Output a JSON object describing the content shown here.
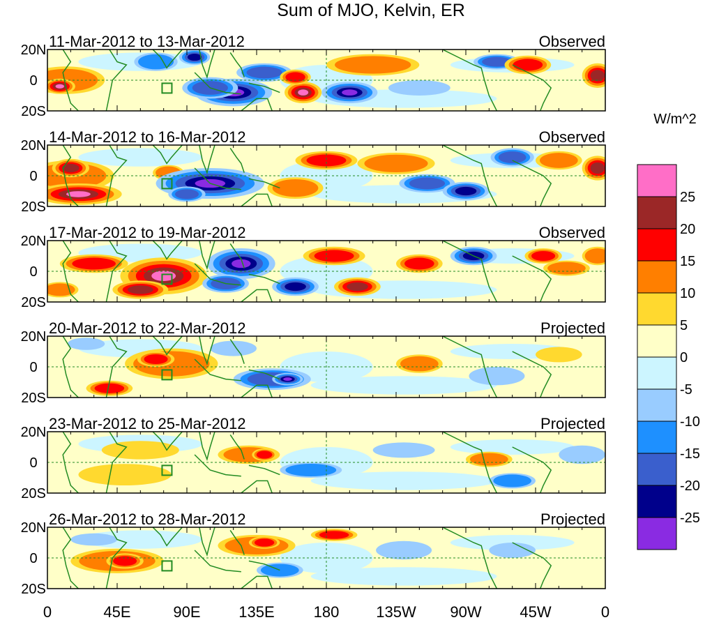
{
  "chart_data": {
    "type": "heatmap",
    "title": "Sum of MJO, Kelvin, ER",
    "colorbar": {
      "label": "W/m^2",
      "tick_labels": [
        "25",
        "20",
        "15",
        "10",
        "5",
        "0",
        "-5",
        "-10",
        "-15",
        "-20",
        "-25"
      ],
      "colors": [
        "#ff6ec7",
        "#9b2727",
        "#ff0000",
        "#ff7f00",
        "#ffd92f",
        "#ffffc8",
        "#ccf5ff",
        "#99ccff",
        "#1e90ff",
        "#3a5fcd",
        "#00008b",
        "#8a2be2"
      ]
    },
    "x_axis": {
      "tick_labels": [
        "0",
        "45E",
        "90E",
        "135E",
        "180",
        "135W",
        "90W",
        "45W",
        "0"
      ],
      "range": [
        0,
        360
      ]
    },
    "y_axis": {
      "tick_labels": [
        "20N",
        "0",
        "20S"
      ],
      "range": [
        -20,
        20
      ]
    },
    "panels": [
      {
        "date_range": "11-Mar-2012 to 13-Mar-2012",
        "status": "Observed",
        "blobs": [
          {
            "lon": 12,
            "lat": 0,
            "rx": 25,
            "ry": 9,
            "level": 2
          },
          {
            "lon": 8,
            "lat": -4,
            "rx": 10,
            "ry": 5,
            "level": 5
          },
          {
            "lon": 70,
            "lat": 12,
            "rx": 14,
            "ry": 6,
            "level": -2
          },
          {
            "lon": 95,
            "lat": 15,
            "rx": 10,
            "ry": 5,
            "level": -4
          },
          {
            "lon": 120,
            "lat": -8,
            "rx": 25,
            "ry": 9,
            "level": -5
          },
          {
            "lon": 105,
            "lat": -5,
            "rx": 18,
            "ry": 7,
            "level": -3
          },
          {
            "lon": 140,
            "lat": 5,
            "rx": 18,
            "ry": 6,
            "level": -3
          },
          {
            "lon": 165,
            "lat": -8,
            "rx": 12,
            "ry": 7,
            "level": 5
          },
          {
            "lon": 160,
            "lat": 2,
            "rx": 10,
            "ry": 5,
            "level": 3
          },
          {
            "lon": 195,
            "lat": -8,
            "rx": 18,
            "ry": 7,
            "level": -5
          },
          {
            "lon": 210,
            "lat": 10,
            "rx": 30,
            "ry": 7,
            "level": 2
          },
          {
            "lon": 240,
            "lat": -5,
            "rx": 20,
            "ry": 5,
            "level": -1
          },
          {
            "lon": 290,
            "lat": 12,
            "rx": 15,
            "ry": 5,
            "level": -3
          },
          {
            "lon": 310,
            "lat": 10,
            "rx": 15,
            "ry": 6,
            "level": 3
          },
          {
            "lon": 355,
            "lat": 3,
            "rx": 10,
            "ry": 8,
            "level": 4
          }
        ]
      },
      {
        "date_range": "14-Mar-2012 to 16-Mar-2012",
        "status": "Observed",
        "blobs": [
          {
            "lon": 15,
            "lat": 0,
            "rx": 28,
            "ry": 10,
            "level": 2
          },
          {
            "lon": 20,
            "lat": -12,
            "rx": 28,
            "ry": 7,
            "level": 5
          },
          {
            "lon": 15,
            "lat": 5,
            "rx": 12,
            "ry": 6,
            "level": 4
          },
          {
            "lon": 78,
            "lat": 2,
            "rx": 10,
            "ry": 5,
            "level": 2
          },
          {
            "lon": 105,
            "lat": -5,
            "rx": 35,
            "ry": 10,
            "level": -5
          },
          {
            "lon": 90,
            "lat": -12,
            "rx": 12,
            "ry": 5,
            "level": -3
          },
          {
            "lon": 160,
            "lat": -8,
            "rx": 18,
            "ry": 7,
            "level": 2
          },
          {
            "lon": 180,
            "lat": 10,
            "rx": 20,
            "ry": 6,
            "level": 3
          },
          {
            "lon": 225,
            "lat": 8,
            "rx": 25,
            "ry": 7,
            "level": 2
          },
          {
            "lon": 245,
            "lat": -5,
            "rx": 18,
            "ry": 6,
            "level": -3
          },
          {
            "lon": 270,
            "lat": -10,
            "rx": 15,
            "ry": 6,
            "level": -4
          },
          {
            "lon": 300,
            "lat": 12,
            "rx": 14,
            "ry": 6,
            "level": -3
          },
          {
            "lon": 330,
            "lat": 10,
            "rx": 15,
            "ry": 6,
            "level": 2
          },
          {
            "lon": 355,
            "lat": 5,
            "rx": 10,
            "ry": 8,
            "level": 4
          }
        ]
      },
      {
        "date_range": "17-Mar-2012 to 19-Mar-2012",
        "status": "Observed",
        "blobs": [
          {
            "lon": 30,
            "lat": 5,
            "rx": 22,
            "ry": 6,
            "level": 3
          },
          {
            "lon": 8,
            "lat": -12,
            "rx": 12,
            "ry": 5,
            "level": 2
          },
          {
            "lon": 75,
            "lat": -3,
            "rx": 28,
            "ry": 12,
            "level": 5
          },
          {
            "lon": 60,
            "lat": -12,
            "rx": 18,
            "ry": 6,
            "level": 4
          },
          {
            "lon": 125,
            "lat": 5,
            "rx": 22,
            "ry": 10,
            "level": -5
          },
          {
            "lon": 115,
            "lat": -8,
            "rx": 15,
            "ry": 6,
            "level": -3
          },
          {
            "lon": 160,
            "lat": -10,
            "rx": 15,
            "ry": 6,
            "level": -4
          },
          {
            "lon": 185,
            "lat": 10,
            "rx": 20,
            "ry": 6,
            "level": 3
          },
          {
            "lon": 200,
            "lat": -10,
            "rx": 15,
            "ry": 6,
            "level": 4
          },
          {
            "lon": 240,
            "lat": 5,
            "rx": 15,
            "ry": 6,
            "level": 3
          },
          {
            "lon": 275,
            "lat": 10,
            "rx": 15,
            "ry": 6,
            "level": -4
          },
          {
            "lon": 320,
            "lat": 10,
            "rx": 12,
            "ry": 5,
            "level": 3
          },
          {
            "lon": 335,
            "lat": 2,
            "rx": 15,
            "ry": 5,
            "level": 2
          },
          {
            "lon": 355,
            "lat": 10,
            "rx": 10,
            "ry": 6,
            "level": 2
          }
        ]
      },
      {
        "date_range": "20-Mar-2012 to 22-Mar-2012",
        "status": "Projected",
        "blobs": [
          {
            "lon": 80,
            "lat": 2,
            "rx": 30,
            "ry": 10,
            "level": 2
          },
          {
            "lon": 70,
            "lat": 5,
            "rx": 12,
            "ry": 5,
            "level": 3
          },
          {
            "lon": 40,
            "lat": -14,
            "rx": 15,
            "ry": 5,
            "level": 3
          },
          {
            "lon": 25,
            "lat": 15,
            "rx": 12,
            "ry": 4,
            "level": -1
          },
          {
            "lon": 145,
            "lat": -8,
            "rx": 25,
            "ry": 7,
            "level": -3
          },
          {
            "lon": 155,
            "lat": -8,
            "rx": 10,
            "ry": 4,
            "level": -5
          },
          {
            "lon": 120,
            "lat": 12,
            "rx": 15,
            "ry": 5,
            "level": -1
          },
          {
            "lon": 240,
            "lat": 2,
            "rx": 15,
            "ry": 6,
            "level": 2
          },
          {
            "lon": 290,
            "lat": -6,
            "rx": 18,
            "ry": 6,
            "level": -1
          },
          {
            "lon": 330,
            "lat": 8,
            "rx": 15,
            "ry": 5,
            "level": 1
          }
        ]
      },
      {
        "date_range": "23-Mar-2012 to 25-Mar-2012",
        "status": "Projected",
        "blobs": [
          {
            "lon": 50,
            "lat": -8,
            "rx": 30,
            "ry": 7,
            "level": 1
          },
          {
            "lon": 60,
            "lat": 8,
            "rx": 25,
            "ry": 6,
            "level": 1
          },
          {
            "lon": 130,
            "lat": 5,
            "rx": 20,
            "ry": 6,
            "level": 2
          },
          {
            "lon": 140,
            "lat": 5,
            "rx": 8,
            "ry": 4,
            "level": 3
          },
          {
            "lon": 170,
            "lat": -5,
            "rx": 20,
            "ry": 5,
            "level": -2
          },
          {
            "lon": 230,
            "lat": 8,
            "rx": 20,
            "ry": 5,
            "level": -1
          },
          {
            "lon": 285,
            "lat": 2,
            "rx": 15,
            "ry": 5,
            "level": 2
          },
          {
            "lon": 300,
            "lat": -12,
            "rx": 15,
            "ry": 5,
            "level": -2
          },
          {
            "lon": 345,
            "lat": 5,
            "rx": 15,
            "ry": 6,
            "level": -1
          }
        ]
      },
      {
        "date_range": "26-Mar-2012 to 28-Mar-2012",
        "status": "Projected",
        "blobs": [
          {
            "lon": 45,
            "lat": -2,
            "rx": 30,
            "ry": 8,
            "level": 2
          },
          {
            "lon": 50,
            "lat": -2,
            "rx": 12,
            "ry": 5,
            "level": 3
          },
          {
            "lon": 135,
            "lat": 8,
            "rx": 25,
            "ry": 7,
            "level": 2
          },
          {
            "lon": 140,
            "lat": 10,
            "rx": 10,
            "ry": 4,
            "level": 3
          },
          {
            "lon": 185,
            "lat": 15,
            "rx": 15,
            "ry": 4,
            "level": 3
          },
          {
            "lon": 150,
            "lat": -8,
            "rx": 15,
            "ry": 5,
            "level": -2
          },
          {
            "lon": 230,
            "lat": 5,
            "rx": 18,
            "ry": 6,
            "level": -1
          },
          {
            "lon": 300,
            "lat": 5,
            "rx": 15,
            "ry": 5,
            "level": -1
          },
          {
            "lon": 30,
            "lat": 12,
            "rx": 15,
            "ry": 4,
            "level": -1
          }
        ]
      }
    ]
  }
}
